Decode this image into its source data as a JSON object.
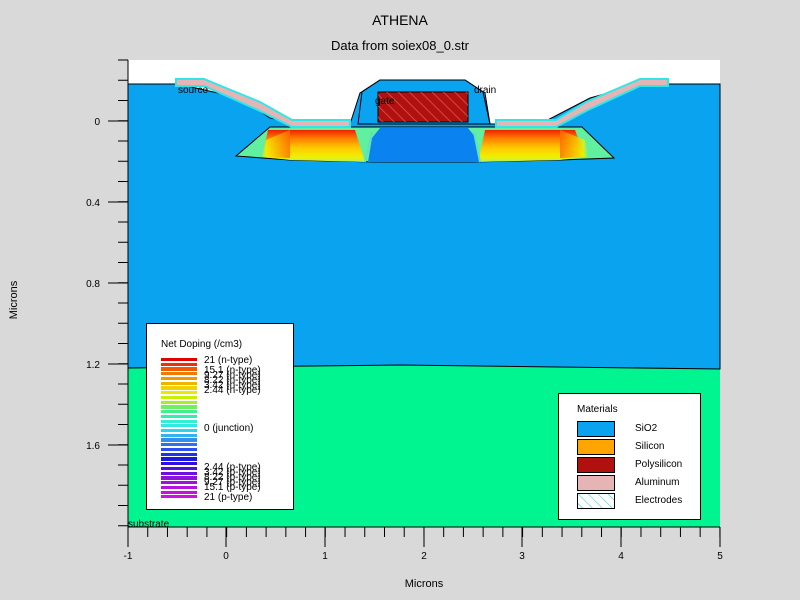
{
  "title": "ATHENA",
  "subtitle": "Data from soiex08_0.str",
  "axes": {
    "xlabel": "Microns",
    "ylabel": "Microns",
    "xticks": [
      "-1",
      "0",
      "1",
      "2",
      "3",
      "4",
      "5"
    ],
    "yticks": [
      "0",
      "0.4",
      "0.8",
      "1.2",
      "1.6"
    ]
  },
  "labels": {
    "source": "source",
    "gate": "gate",
    "drain": "drain",
    "substrate": "substrate"
  },
  "doping_legend": {
    "title": "Net Doping (/cm3)",
    "entries": [
      "21 (n-type)",
      "15.1 (n-type)",
      "9.27 (n-type)",
      "8.22 (n-type)",
      "3.42 (n-type)",
      "2.44 (n-type)",
      "0 (junction)",
      "2.44 (p-type)",
      "3.42 (p-type)",
      "8.22 (p-type)",
      "9.27 (p-type)",
      "15.1 (p-type)",
      "21 (p-type)"
    ]
  },
  "materials_legend": {
    "title": "Materials",
    "items": [
      {
        "label": "SiO2",
        "color": "#0aa3f0"
      },
      {
        "label": "Silicon",
        "color": "#ffa500"
      },
      {
        "label": "Polysilicon",
        "color": "#b0100e"
      },
      {
        "label": "Aluminum",
        "color": "#e6b4b4"
      },
      {
        "label": "Electrodes",
        "color": "#ffffff"
      }
    ]
  },
  "colors": {
    "background": "#d9d9d9",
    "substrate": "#00f591",
    "oxide": "#0aa3f0",
    "channel": "#0a82f0",
    "polysilicon": "#b0100e",
    "electrode_outline": "#32e6e6",
    "aluminum": "#e6b4b4"
  }
}
